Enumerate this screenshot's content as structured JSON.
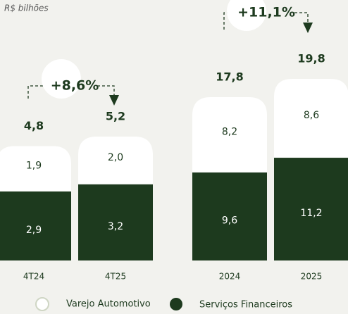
{
  "chart_data": [
    {
      "type": "bar",
      "subtitle": "R$ bilhões",
      "stacked": true,
      "categories": [
        "4T24",
        "4T25"
      ],
      "series": [
        {
          "name": "Serviços Financeiros",
          "color": "#1d3a1e",
          "values": [
            2.9,
            3.2
          ],
          "value_labels": [
            "2,9",
            "3,2"
          ]
        },
        {
          "name": "Varejo Automotivo",
          "color": "#ffffff",
          "values": [
            1.9,
            2.0
          ],
          "value_labels": [
            "1,9",
            "2,0"
          ]
        }
      ],
      "totals": [
        4.8,
        5.2
      ],
      "total_labels": [
        "4,8",
        "5,2"
      ],
      "annotation": "+8,6%"
    },
    {
      "type": "bar",
      "stacked": true,
      "categories": [
        "2024",
        "2025"
      ],
      "series": [
        {
          "name": "Serviços Financeiros",
          "color": "#1d3a1e",
          "values": [
            9.6,
            11.2
          ],
          "value_labels": [
            "9,6",
            "11,2"
          ]
        },
        {
          "name": "Varejo Automotivo",
          "color": "#ffffff",
          "values": [
            8.2,
            8.6
          ],
          "value_labels": [
            "8,2",
            "8,6"
          ]
        }
      ],
      "totals": [
        17.8,
        19.8
      ],
      "total_labels": [
        "17,8",
        "19,8"
      ],
      "annotation": "+11,1%"
    }
  ]
}
